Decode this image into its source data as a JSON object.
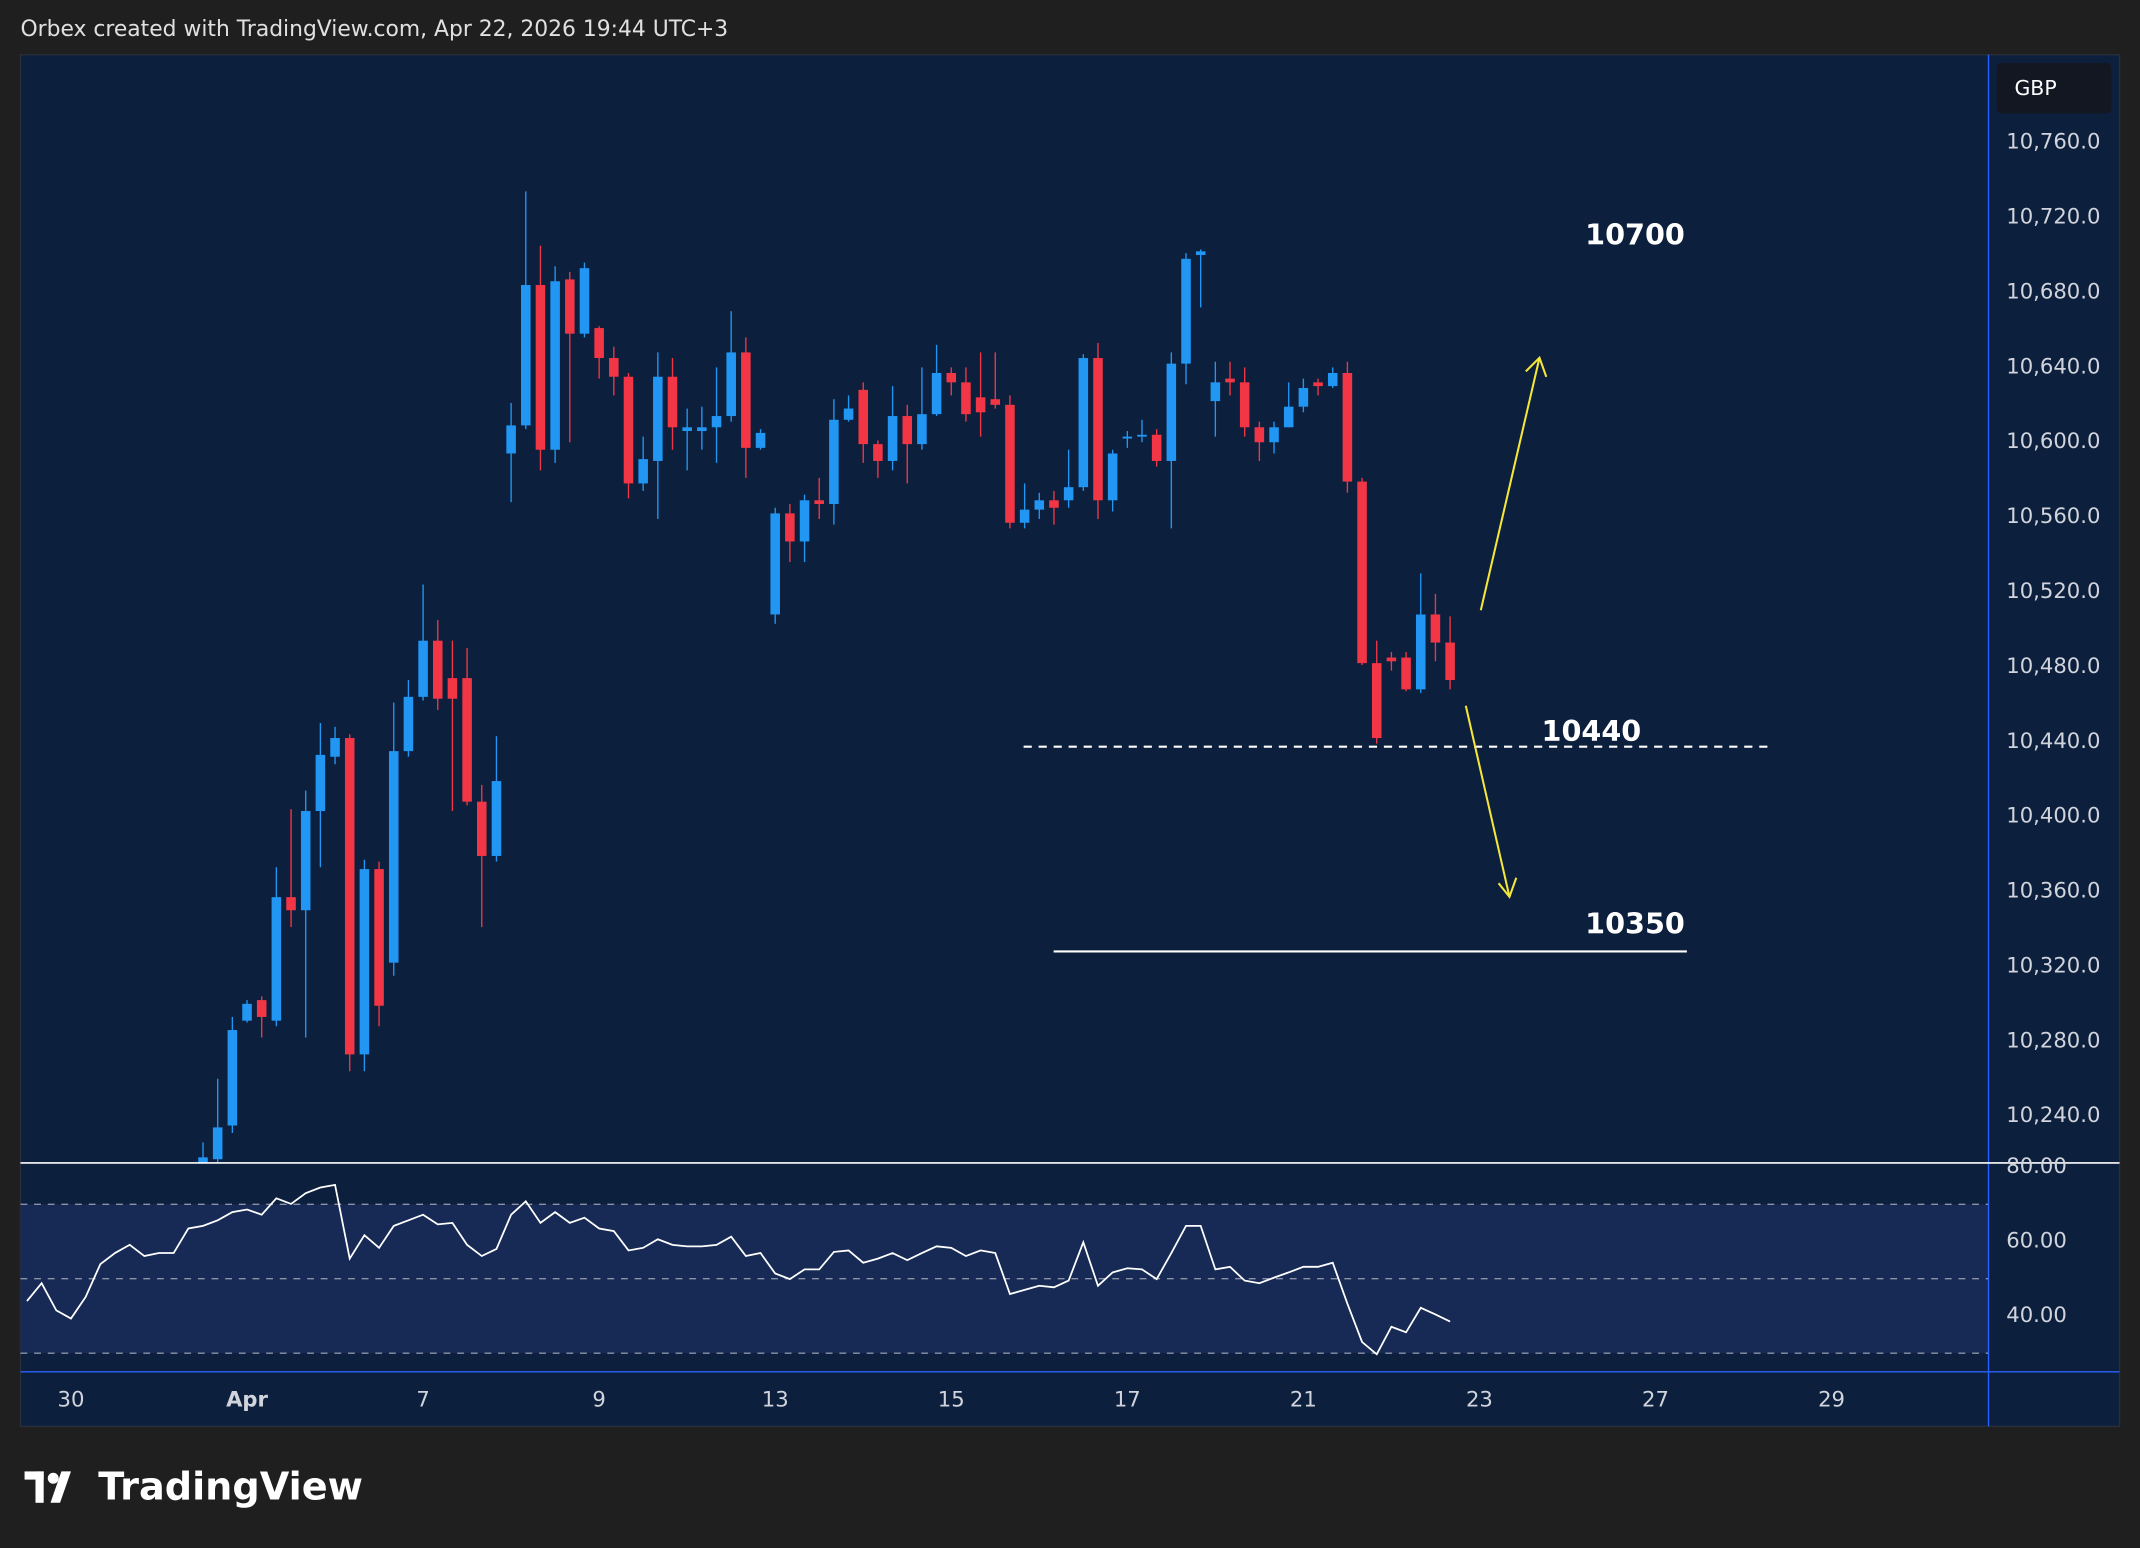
{
  "header": "Orbex created with TradingView.com, Apr 22, 2026 19:44 UTC+3",
  "watermark": "TradingView",
  "chart_data": [
    {
      "type": "candlestick",
      "currency": "GBP",
      "up_color": "#2196f3",
      "down_color": "#f23645",
      "categories": [
        null,
        null,
        null,
        "30",
        null,
        null,
        null,
        null,
        null,
        null,
        null,
        null,
        null,
        null,
        null,
        "Apr",
        null,
        null,
        null,
        null,
        null,
        null,
        null,
        null,
        null,
        null,
        null,
        "7",
        null,
        null,
        null,
        null,
        null,
        null,
        null,
        null,
        null,
        null,
        null,
        "9",
        null,
        null,
        null,
        null,
        null,
        null,
        null,
        null,
        null,
        null,
        null,
        "13",
        null,
        null,
        null,
        null,
        null,
        null,
        null,
        null,
        null,
        null,
        null,
        "15",
        null,
        null,
        null,
        null,
        null,
        null,
        null,
        null,
        null,
        null,
        null,
        "17",
        null,
        null,
        null,
        null,
        null,
        null,
        null,
        null,
        null,
        null,
        null,
        "21",
        null,
        null,
        null,
        null,
        null,
        null,
        null,
        null,
        null,
        null,
        null,
        "23",
        null,
        null,
        null,
        null,
        null,
        null,
        null,
        null,
        null,
        null,
        null,
        "27",
        null,
        null,
        null,
        null,
        null,
        null,
        null,
        null,
        null,
        null,
        null,
        "29",
        null,
        null,
        null,
        null,
        null,
        null,
        null,
        null,
        null,
        null
      ],
      "open": [
        null,
        null,
        null,
        null,
        null,
        null,
        null,
        null,
        null,
        null,
        null,
        null,
        10213,
        10217,
        10235,
        10291,
        10302,
        10291,
        10357,
        10350,
        10403,
        10432,
        10442,
        10273,
        10372,
        10322,
        10435,
        10464,
        10494,
        10474,
        10474,
        10408,
        10379,
        10594,
        10609,
        10684,
        10596,
        10687,
        10658,
        10661,
        10645,
        10635,
        10578,
        10590,
        10635,
        10606,
        10606,
        10608,
        10614,
        10648,
        10597,
        10508,
        10562,
        10547,
        10569,
        10567,
        10612,
        10628,
        10599,
        10590,
        10614,
        10599,
        10615,
        10637,
        10632,
        10624,
        10623,
        10620,
        10557,
        10564,
        10569,
        10569,
        10576,
        10645,
        10569,
        10602,
        10603,
        10604,
        10590,
        10642,
        10700,
        10622,
        10634,
        10632,
        10608,
        10600,
        10608,
        10619,
        10632,
        10630,
        10637,
        10579,
        10482,
        10485,
        10485,
        10468,
        10508,
        10493,
        null,
        null,
        null,
        null,
        null,
        null,
        null,
        null,
        null,
        null,
        null,
        null,
        null,
        null,
        null,
        null,
        null,
        null,
        null,
        null,
        null,
        null,
        null,
        null,
        null,
        null,
        null,
        null,
        null,
        null,
        null,
        null,
        null,
        null,
        null,
        null
      ],
      "high": [
        null,
        null,
        null,
        null,
        null,
        null,
        null,
        null,
        null,
        null,
        null,
        null,
        10226,
        10260,
        10293,
        10302,
        10304,
        10373,
        10404,
        10414,
        10450,
        10448,
        10444,
        10377,
        10376,
        10461,
        10473,
        10524,
        10505,
        10494,
        10490,
        10417,
        10443,
        10621,
        10734,
        10705,
        10694,
        10691,
        10696,
        10662,
        10651,
        10637,
        10603,
        10648,
        10645,
        10618,
        10619,
        10640,
        10670,
        10656,
        10607,
        10565,
        10567,
        10572,
        10581,
        10623,
        10625,
        10632,
        10601,
        10630,
        10620,
        10640,
        10652,
        10640,
        10640,
        10648,
        10648,
        10625,
        10578,
        10573,
        10574,
        10596,
        10647,
        10653,
        10596,
        10606,
        10612,
        10607,
        10648,
        10701,
        10703,
        10643,
        10643,
        10640,
        10611,
        10611,
        10632,
        10634,
        10634,
        10640,
        10643,
        10581,
        10494,
        10488,
        10488,
        10530,
        10519,
        10507,
        null,
        null,
        null,
        null,
        null,
        null,
        null,
        null,
        null,
        null,
        null,
        null,
        null,
        null,
        null,
        null,
        null,
        null,
        null,
        null,
        null,
        null,
        null,
        null,
        null,
        null,
        null,
        null,
        null,
        null,
        null,
        null,
        null,
        null,
        null,
        null
      ],
      "low": [
        null,
        null,
        null,
        null,
        null,
        null,
        null,
        null,
        null,
        null,
        null,
        null,
        10208,
        10212,
        10231,
        10290,
        10282,
        10288,
        10341,
        10282,
        10373,
        10428,
        10264,
        10264,
        10288,
        10315,
        10432,
        10462,
        10457,
        10403,
        10406,
        10341,
        10376,
        10568,
        10607,
        10585,
        10589,
        10600,
        10656,
        10634,
        10625,
        10570,
        10574,
        10559,
        10596,
        10585,
        10596,
        10589,
        10611,
        10581,
        10596,
        10503,
        10536,
        10536,
        10559,
        10556,
        10611,
        10589,
        10581,
        10585,
        10578,
        10596,
        10614,
        10625,
        10611,
        10603,
        10618,
        10554,
        10554,
        10559,
        10556,
        10565,
        10574,
        10559,
        10563,
        10597,
        10600,
        10587,
        10554,
        10631,
        10672,
        10603,
        10625,
        10603,
        10590,
        10594,
        10608,
        10616,
        10625,
        10629,
        10573,
        10481,
        10439,
        10478,
        10467,
        10466,
        10483,
        10468,
        null,
        null,
        null,
        null,
        null,
        null,
        null,
        null,
        null,
        null,
        null,
        null,
        null,
        null,
        null,
        null,
        null,
        null,
        null,
        null,
        null,
        null,
        null,
        null,
        null,
        null,
        null,
        null,
        null,
        null,
        null,
        null,
        null,
        null,
        null,
        null
      ],
      "close": [
        null,
        null,
        null,
        null,
        null,
        null,
        null,
        null,
        null,
        null,
        null,
        null,
        10218,
        10234,
        10286,
        10300,
        10293,
        10357,
        10350,
        10403,
        10433,
        10442,
        10273,
        10372,
        10299,
        10435,
        10464,
        10494,
        10463,
        10463,
        10408,
        10379,
        10419,
        10609,
        10684,
        10596,
        10686,
        10658,
        10693,
        10645,
        10635,
        10578,
        10591,
        10635,
        10608,
        10608,
        10608,
        10614,
        10648,
        10597,
        10605,
        10562,
        10547,
        10569,
        10567,
        10612,
        10618,
        10599,
        10590,
        10614,
        10599,
        10615,
        10637,
        10632,
        10615,
        10616,
        10620,
        10557,
        10564,
        10569,
        10565,
        10576,
        10645,
        10569,
        10594,
        10603,
        10604,
        10590,
        10642,
        10698,
        10702,
        10632,
        10632,
        10608,
        10600,
        10608,
        10619,
        10629,
        10630,
        10637,
        10579,
        10482,
        10442,
        10483,
        10468,
        10508,
        10493,
        10473,
        null,
        null,
        null,
        null,
        null,
        null,
        null,
        null,
        null,
        null,
        null,
        null,
        null,
        null,
        null,
        null,
        null,
        null,
        null,
        null,
        null,
        null,
        null,
        null,
        null,
        null,
        null,
        null,
        null,
        null,
        null,
        null,
        null,
        null,
        null,
        null
      ],
      "ylim": [
        10215,
        10807
      ],
      "yticks": [
        {
          "value": 10240,
          "label": "10,240.0"
        },
        {
          "value": 10280,
          "label": "10,280.0"
        },
        {
          "value": 10320,
          "label": "10,320.0"
        },
        {
          "value": 10360,
          "label": "10,360.0"
        },
        {
          "value": 10400,
          "label": "10,400.0"
        },
        {
          "value": 10440,
          "label": "10,440.0"
        },
        {
          "value": 10480,
          "label": "10,480.0"
        },
        {
          "value": 10520,
          "label": "10,520.0"
        },
        {
          "value": 10560,
          "label": "10,560.0"
        },
        {
          "value": 10600,
          "label": "10,600.0"
        },
        {
          "value": 10640,
          "label": "10,640.0"
        },
        {
          "value": 10680,
          "label": "10,680.0"
        },
        {
          "value": 10720,
          "label": "10,720.0"
        },
        {
          "value": 10760,
          "label": "10,760.0"
        }
      ],
      "annotations": [
        "10700",
        "10440",
        "10350"
      ]
    },
    {
      "type": "line",
      "color": "#ffffff",
      "values": [
        44.0,
        48.8,
        41.5,
        39.3,
        45.1,
        53.9,
        56.9,
        59.1,
        56.1,
        56.9,
        56.9,
        63.5,
        64.2,
        65.7,
        67.9,
        68.6,
        67.2,
        71.6,
        70.1,
        73.0,
        74.5,
        75.2,
        55.4,
        61.7,
        58.3,
        64.2,
        65.7,
        67.2,
        64.6,
        65.0,
        59.1,
        56.1,
        58.0,
        67.2,
        70.8,
        65.0,
        67.9,
        65.0,
        66.4,
        63.5,
        62.8,
        57.6,
        58.3,
        60.6,
        59.1,
        58.7,
        58.7,
        59.1,
        61.3,
        56.1,
        56.9,
        51.4,
        49.9,
        52.5,
        52.5,
        57.2,
        57.6,
        54.3,
        55.4,
        56.9,
        55.0,
        56.9,
        58.7,
        58.3,
        56.1,
        57.6,
        56.9,
        45.9,
        47.0,
        48.1,
        47.7,
        49.5,
        59.8,
        48.1,
        51.7,
        52.8,
        52.5,
        49.9,
        56.9,
        64.2,
        64.2,
        52.5,
        53.2,
        49.5,
        48.8,
        50.3,
        51.7,
        53.2,
        53.2,
        54.3,
        43.3,
        33.0,
        29.7,
        37.1,
        35.6,
        42.2,
        40.4,
        38.5,
        null,
        null,
        null,
        null,
        null,
        null,
        null,
        null,
        null,
        null,
        null,
        null,
        null,
        null,
        null,
        null,
        null,
        null,
        null,
        null,
        null,
        null,
        null,
        null,
        null,
        null,
        null,
        null,
        null,
        null,
        null,
        null,
        null,
        null,
        null,
        null
      ],
      "ylim": [
        25,
        81.1
      ],
      "yticks": [
        {
          "value": 40,
          "label": "40.00"
        },
        {
          "value": 60,
          "label": "60.00"
        },
        {
          "value": 80,
          "label": "80.00"
        }
      ],
      "levels": [
        30,
        50,
        70
      ]
    }
  ]
}
